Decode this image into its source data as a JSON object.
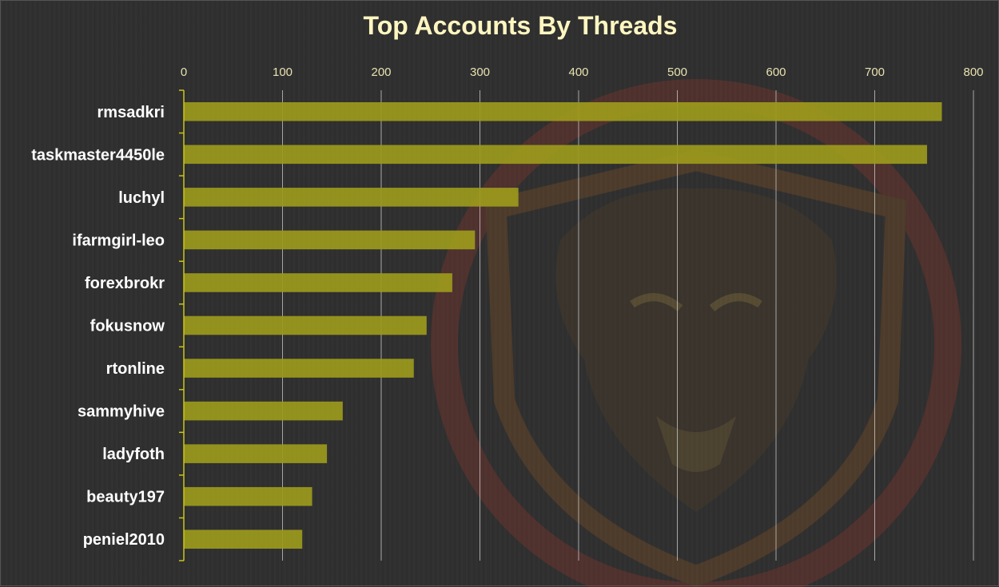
{
  "chart_data": {
    "type": "bar",
    "orientation": "horizontal",
    "title": "Top Accounts By Threads",
    "categories": [
      "rmsadkri",
      "taskmaster4450le",
      "luchyl",
      "ifarmgirl-leo",
      "forexbrokr",
      "fokusnow",
      "rtonline",
      "sammyhive",
      "ladyfoth",
      "beauty197",
      "peniel2010"
    ],
    "values": [
      768,
      753,
      339,
      295,
      272,
      246,
      233,
      161,
      145,
      130,
      120
    ],
    "xlim": [
      0,
      800
    ],
    "xticks": [
      0,
      100,
      200,
      300,
      400,
      500,
      600,
      700,
      800
    ],
    "xaxis_position": "top",
    "grid": true,
    "legend": "none",
    "colors": {
      "bar": "#9c9a1c",
      "grid": "#cfcfcf",
      "axis": "#c9c41a",
      "title": "#fff6c0",
      "background": "#2f2f2f"
    },
    "background_emblem": "lion-shield-watermark"
  }
}
